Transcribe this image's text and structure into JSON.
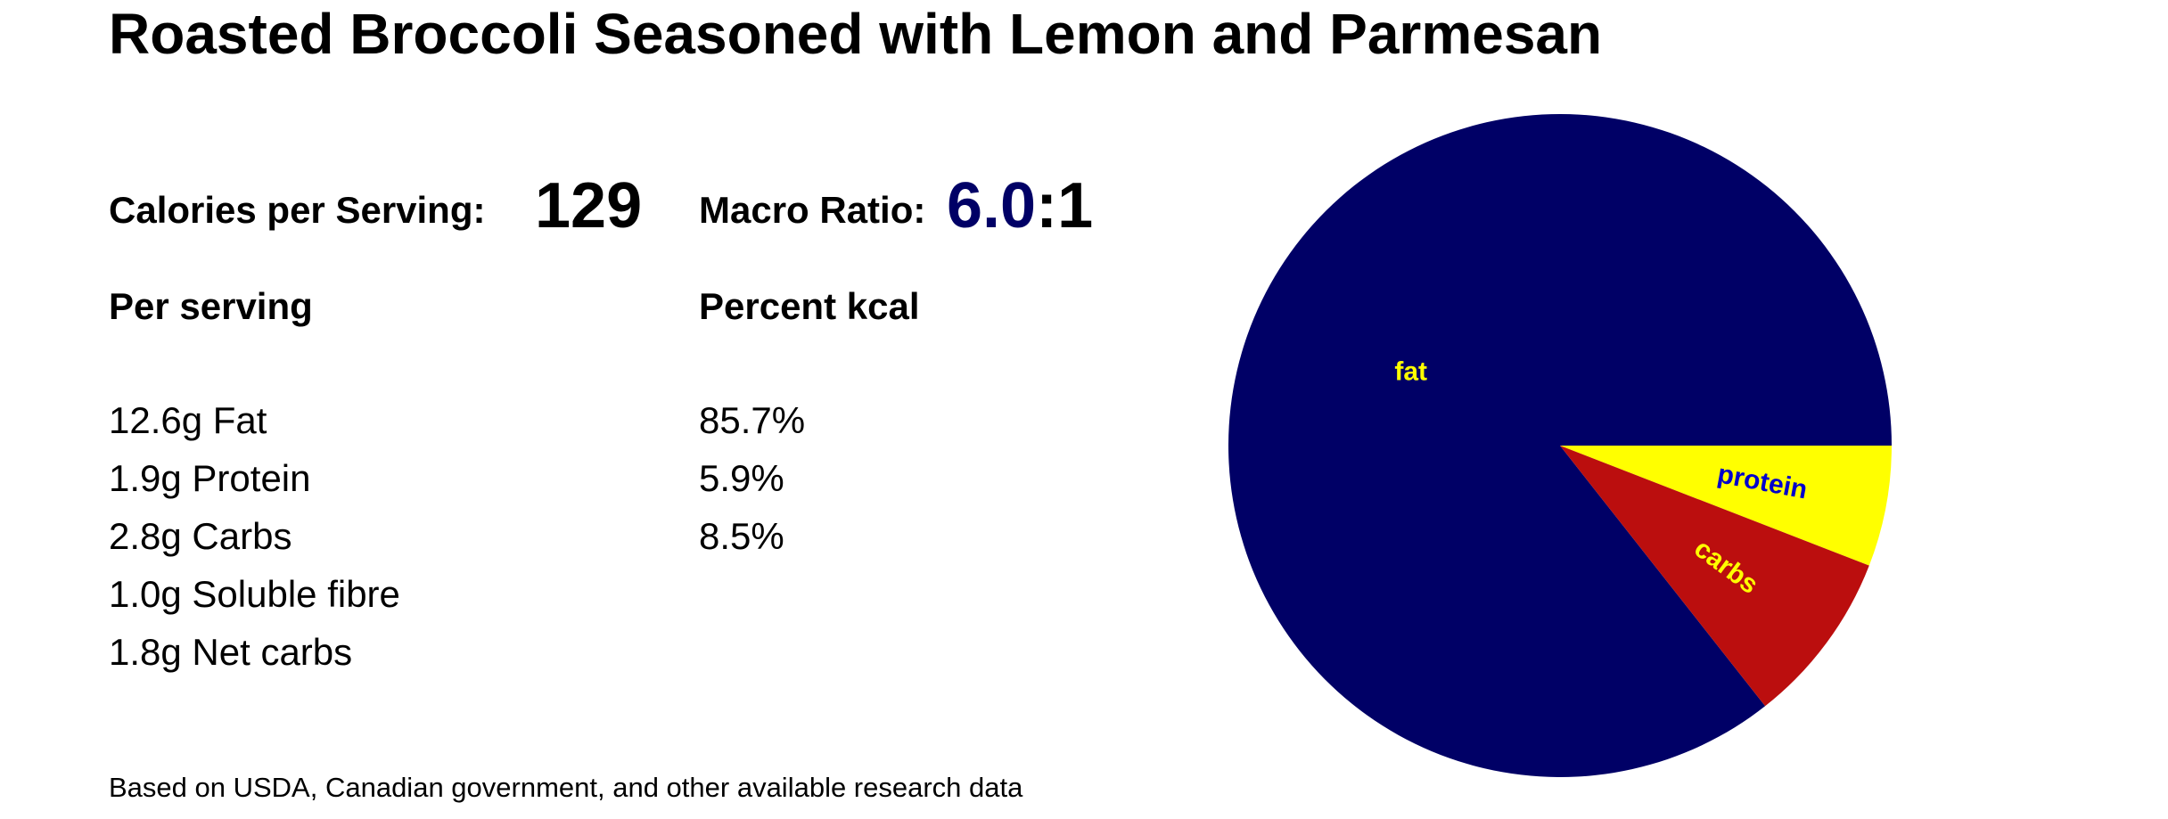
{
  "title": "Roasted Broccoli Seasoned with Lemon and Parmesan",
  "calories": {
    "label": "Calories per Serving:",
    "value": "129"
  },
  "macro_ratio": {
    "label": "Macro Ratio:",
    "value": "6.0",
    "suffix": ":1"
  },
  "per_serving": {
    "heading": "Per serving",
    "items": [
      "12.6g Fat",
      "1.9g Protein",
      "2.8g Carbs",
      "1.0g Soluble fibre",
      "1.8g Net carbs"
    ]
  },
  "percent_kcal": {
    "heading": "Percent kcal",
    "items": [
      "85.7%",
      "5.9%",
      "8.5%"
    ]
  },
  "footnote": "Based on USDA, Canadian government, and other available research data",
  "chart_data": {
    "type": "pie",
    "title": "",
    "slices": [
      {
        "label": "fat",
        "value": 85.7,
        "color": "#000066",
        "label_color": "#ffff00"
      },
      {
        "label": "protein",
        "value": 5.9,
        "color": "#ffff00",
        "label_color": "#0000cc"
      },
      {
        "label": "carbs",
        "value": 8.5,
        "color": "#bb0e0e",
        "label_color": "#ffff00"
      }
    ],
    "direction": "clockwise",
    "start": "3-o'clock, fat slice runs counterclockwise from 0°"
  }
}
